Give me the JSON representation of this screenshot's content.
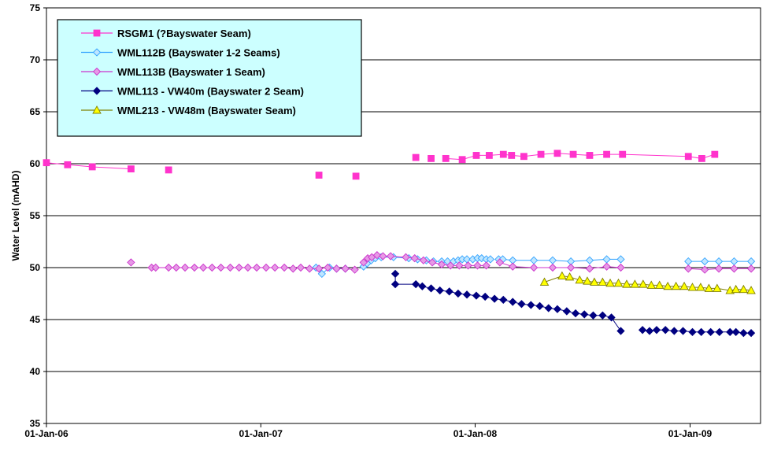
{
  "chart_data": {
    "type": "line",
    "title": "",
    "xlabel": "",
    "ylabel": "Water Level (mAHD)",
    "ylim": [
      35,
      75
    ],
    "yticks": [
      35,
      40,
      45,
      50,
      55,
      60,
      65,
      70,
      75
    ],
    "xlim": [
      "2006-01-01",
      "2009-05-01"
    ],
    "xticks": [
      "2006-01-01",
      "2007-01-01",
      "2008-01-01",
      "2009-01-01"
    ],
    "xtick_labels": [
      "01-Jan-06",
      "01-Jan-07",
      "01-Jan-08",
      "01-Jan-09"
    ],
    "grid": "horizontal major gridlines",
    "legend_position": "top-left",
    "series": [
      {
        "name": "RSGM1 (?Bayswater Seam)",
        "color": "#ff33cc",
        "marker": "square",
        "connect": "segments",
        "segments": [
          [
            [
              "2006-01-01",
              60.1
            ],
            [
              "2006-02-06",
              59.9
            ],
            [
              "2006-03-20",
              59.7
            ],
            [
              "2006-05-25",
              59.5
            ]
          ],
          [
            [
              "2007-11-12",
              60.5
            ],
            [
              "2007-12-10",
              60.4
            ],
            [
              "2008-01-03",
              60.8
            ],
            [
              "2008-01-25",
              60.8
            ],
            [
              "2008-02-18",
              60.9
            ],
            [
              "2008-03-03",
              60.8
            ],
            [
              "2008-03-24",
              60.7
            ],
            [
              "2008-04-22",
              60.9
            ],
            [
              "2008-05-20",
              61.0
            ],
            [
              "2008-06-16",
              60.9
            ],
            [
              "2008-07-14",
              60.8
            ],
            [
              "2008-08-12",
              60.9
            ],
            [
              "2008-09-08",
              60.9
            ],
            [
              "2008-12-29",
              60.7
            ],
            [
              "2009-01-21",
              60.5
            ],
            [
              "2009-02-12",
              60.9
            ]
          ]
        ],
        "points": [
          [
            "2006-07-28",
            59.4
          ],
          [
            "2007-04-10",
            58.9
          ],
          [
            "2007-06-12",
            58.8
          ],
          [
            "2007-09-22",
            60.6
          ],
          [
            "2007-10-18",
            60.5
          ]
        ]
      },
      {
        "name": "WML112B (Bayswater 1-2 Seams)",
        "color": "#33a3ff",
        "fill": "#bfe6ff",
        "marker": "diamond",
        "connect": "segments",
        "segments": [
          [
            [
              "2007-04-05",
              50.0
            ],
            [
              "2007-04-15",
              49.4
            ],
            [
              "2007-04-28",
              50.0
            ],
            [
              "2007-05-10",
              49.9
            ],
            [
              "2007-05-25",
              49.9
            ]
          ],
          [
            [
              "2007-06-25",
              50.1
            ],
            [
              "2007-07-01",
              50.4
            ],
            [
              "2007-07-08",
              50.7
            ],
            [
              "2007-07-15",
              50.9
            ],
            [
              "2007-07-25",
              51.0
            ],
            [
              "2007-08-15",
              51.0
            ],
            [
              "2007-09-10",
              50.9
            ],
            [
              "2007-09-25",
              50.8
            ],
            [
              "2007-10-10",
              50.7
            ],
            [
              "2007-10-22",
              50.6
            ],
            [
              "2007-11-05",
              50.6
            ],
            [
              "2007-11-15",
              50.6
            ],
            [
              "2007-11-25",
              50.6
            ],
            [
              "2007-12-03",
              50.7
            ],
            [
              "2007-12-10",
              50.8
            ],
            [
              "2007-12-18",
              50.8
            ],
            [
              "2007-12-28",
              50.8
            ],
            [
              "2008-01-05",
              50.9
            ],
            [
              "2008-01-12",
              50.9
            ],
            [
              "2008-01-20",
              50.8
            ],
            [
              "2008-01-27",
              50.8
            ]
          ],
          [
            [
              "2008-02-10",
              50.8
            ],
            [
              "2008-02-17",
              50.8
            ],
            [
              "2008-03-05",
              50.7
            ],
            [
              "2008-04-10",
              50.7
            ],
            [
              "2008-05-12",
              50.7
            ],
            [
              "2008-06-12",
              50.6
            ],
            [
              "2008-07-14",
              50.7
            ],
            [
              "2008-08-12",
              50.8
            ],
            [
              "2008-09-05",
              50.8
            ]
          ],
          [
            [
              "2008-12-29",
              50.6
            ],
            [
              "2009-01-26",
              50.6
            ],
            [
              "2009-02-19",
              50.6
            ],
            [
              "2009-03-17",
              50.6
            ],
            [
              "2009-04-15",
              50.6
            ]
          ]
        ]
      },
      {
        "name": "WML113B (Bayswater 1 Seam)",
        "color": "#cc33cc",
        "fill": "#e69ae6",
        "marker": "diamond",
        "connect": "segments",
        "segments": [
          [
            [
              "2006-06-29",
              50.0
            ],
            [
              "2006-07-06",
              50.0
            ],
            [
              "2006-07-28",
              50.0
            ],
            [
              "2006-08-10",
              50.0
            ],
            [
              "2006-08-25",
              50.0
            ],
            [
              "2006-09-10",
              50.0
            ],
            [
              "2006-09-25",
              50.0
            ],
            [
              "2006-10-10",
              50.0
            ],
            [
              "2006-10-25",
              50.0
            ],
            [
              "2006-11-10",
              50.0
            ],
            [
              "2006-11-25",
              50.0
            ],
            [
              "2006-12-10",
              50.0
            ],
            [
              "2006-12-25",
              50.0
            ],
            [
              "2007-01-10",
              50.0
            ],
            [
              "2007-01-25",
              50.0
            ],
            [
              "2007-02-10",
              50.0
            ],
            [
              "2007-02-25",
              49.9
            ],
            [
              "2007-03-10",
              50.0
            ],
            [
              "2007-03-25",
              49.9
            ],
            [
              "2007-04-10",
              49.9
            ],
            [
              "2007-04-25",
              50.0
            ],
            [
              "2007-05-10",
              49.9
            ],
            [
              "2007-05-25",
              49.9
            ],
            [
              "2007-06-10",
              49.8
            ]
          ],
          [
            [
              "2007-06-25",
              50.5
            ],
            [
              "2007-07-02",
              50.9
            ],
            [
              "2007-07-09",
              51.0
            ],
            [
              "2007-07-18",
              51.2
            ],
            [
              "2007-07-28",
              51.1
            ],
            [
              "2007-08-10",
              51.1
            ],
            [
              "2007-09-05",
              51.0
            ],
            [
              "2007-09-20",
              50.9
            ],
            [
              "2007-10-05",
              50.7
            ],
            [
              "2007-10-20",
              50.5
            ],
            [
              "2007-11-05",
              50.3
            ],
            [
              "2007-11-20",
              50.2
            ],
            [
              "2007-12-05",
              50.2
            ],
            [
              "2007-12-20",
              50.2
            ],
            [
              "2008-01-05",
              50.2
            ],
            [
              "2008-01-20",
              50.2
            ]
          ],
          [
            [
              "2008-02-12",
              50.5
            ],
            [
              "2008-03-05",
              50.1
            ],
            [
              "2008-04-10",
              50.0
            ],
            [
              "2008-05-12",
              50.0
            ],
            [
              "2008-06-12",
              50.0
            ],
            [
              "2008-07-14",
              49.9
            ],
            [
              "2008-08-12",
              50.1
            ],
            [
              "2008-09-05",
              50.0
            ]
          ],
          [
            [
              "2008-12-29",
              49.9
            ],
            [
              "2009-01-26",
              49.8
            ],
            [
              "2009-02-19",
              49.9
            ],
            [
              "2009-03-17",
              49.9
            ],
            [
              "2009-04-15",
              49.9
            ]
          ]
        ],
        "points": [
          [
            "2006-05-25",
            50.5
          ]
        ]
      },
      {
        "name": "WML113 - VW40m (Bayswater 2 Seam)",
        "color": "#000080",
        "marker": "diamond",
        "connect": "segments",
        "segments": [
          [
            [
              "2007-08-18",
              49.4
            ],
            [
              "2007-08-18",
              48.4
            ],
            [
              "2007-09-22",
              48.4
            ],
            [
              "2007-10-03",
              48.2
            ],
            [
              "2007-10-18",
              48.0
            ],
            [
              "2007-11-02",
              47.8
            ],
            [
              "2007-11-18",
              47.7
            ],
            [
              "2007-12-03",
              47.5
            ],
            [
              "2007-12-18",
              47.4
            ],
            [
              "2008-01-03",
              47.3
            ],
            [
              "2008-01-18",
              47.2
            ],
            [
              "2008-02-03",
              47.0
            ],
            [
              "2008-02-18",
              46.9
            ],
            [
              "2008-03-05",
              46.7
            ],
            [
              "2008-03-20",
              46.5
            ],
            [
              "2008-04-05",
              46.4
            ],
            [
              "2008-04-20",
              46.3
            ],
            [
              "2008-05-05",
              46.1
            ],
            [
              "2008-05-20",
              46.0
            ],
            [
              "2008-06-05",
              45.8
            ],
            [
              "2008-06-20",
              45.6
            ],
            [
              "2008-07-05",
              45.5
            ],
            [
              "2008-07-20",
              45.4
            ],
            [
              "2008-08-05",
              45.4
            ],
            [
              "2008-08-20",
              45.2
            ],
            [
              "2008-09-05",
              43.9
            ]
          ],
          [
            [
              "2008-10-12",
              44.0
            ],
            [
              "2008-10-24",
              43.9
            ],
            [
              "2008-11-05",
              44.0
            ],
            [
              "2008-11-20",
              44.0
            ],
            [
              "2008-12-05",
              43.9
            ],
            [
              "2008-12-20",
              43.9
            ],
            [
              "2009-01-05",
              43.8
            ],
            [
              "2009-01-20",
              43.8
            ],
            [
              "2009-02-05",
              43.8
            ],
            [
              "2009-02-20",
              43.8
            ],
            [
              "2009-03-10",
              43.8
            ],
            [
              "2009-03-20",
              43.8
            ],
            [
              "2009-04-02",
              43.7
            ],
            [
              "2009-04-15",
              43.7
            ]
          ]
        ]
      },
      {
        "name": "WML213 - VW48m (Bayswater Seam)",
        "color": "#808000",
        "fill": "#ffff00",
        "marker": "triangle",
        "connect": "segments",
        "segments": [
          [
            [
              "2008-04-28",
              48.6
            ],
            [
              "2008-05-28",
              49.2
            ],
            [
              "2008-06-10",
              49.1
            ],
            [
              "2008-06-27",
              48.8
            ],
            [
              "2008-07-10",
              48.7
            ],
            [
              "2008-07-22",
              48.6
            ],
            [
              "2008-08-05",
              48.6
            ],
            [
              "2008-08-18",
              48.5
            ],
            [
              "2008-09-01",
              48.5
            ],
            [
              "2008-09-15",
              48.4
            ],
            [
              "2008-09-29",
              48.4
            ],
            [
              "2008-10-13",
              48.4
            ],
            [
              "2008-10-27",
              48.3
            ],
            [
              "2008-11-10",
              48.3
            ],
            [
              "2008-11-24",
              48.2
            ],
            [
              "2008-12-08",
              48.2
            ],
            [
              "2008-12-22",
              48.2
            ],
            [
              "2009-01-05",
              48.1
            ],
            [
              "2009-01-19",
              48.1
            ],
            [
              "2009-02-02",
              48.0
            ],
            [
              "2009-02-16",
              48.0
            ],
            [
              "2009-03-10",
              47.8
            ],
            [
              "2009-03-20",
              47.9
            ],
            [
              "2009-04-02",
              47.9
            ],
            [
              "2009-04-15",
              47.8
            ]
          ]
        ]
      }
    ]
  }
}
